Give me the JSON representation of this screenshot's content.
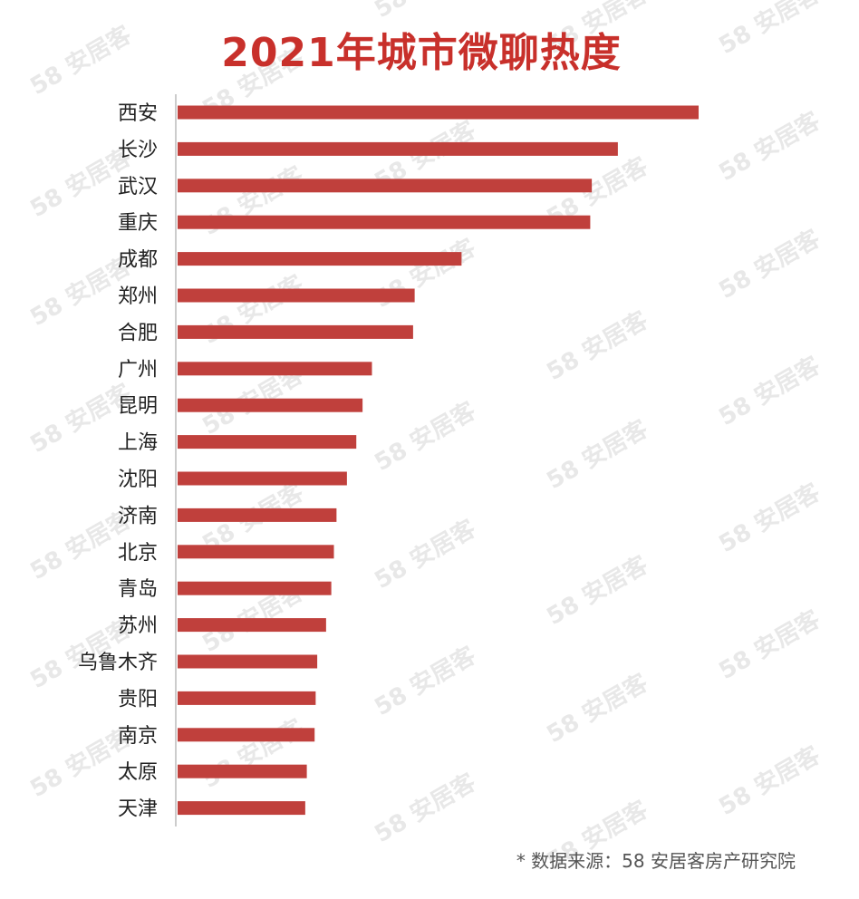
{
  "chart_data": {
    "type": "bar",
    "orientation": "horizontal",
    "title": "2021年城市微聊热度",
    "categories": [
      "西安",
      "长沙",
      "武汉",
      "重庆",
      "成都",
      "郑州",
      "合肥",
      "广州",
      "昆明",
      "上海",
      "沈阳",
      "济南",
      "北京",
      "青岛",
      "苏州",
      "乌鲁木齐",
      "贵阳",
      "南京",
      "太原",
      "天津"
    ],
    "values": [
      100,
      84.5,
      79.5,
      79.2,
      54.5,
      45.5,
      45.2,
      37.3,
      35.5,
      34.3,
      32.5,
      30.5,
      30.0,
      29.5,
      28.5,
      26.8,
      26.5,
      26.3,
      24.8,
      24.5
    ],
    "xlim": [
      0,
      100
    ],
    "xlabel": "",
    "ylabel": "",
    "grid": false,
    "bar_color": "#c0403c",
    "axis_color": "#cccccc"
  },
  "watermark": "58 安居客",
  "source": "* 数据来源：58 安居客房产研究院"
}
